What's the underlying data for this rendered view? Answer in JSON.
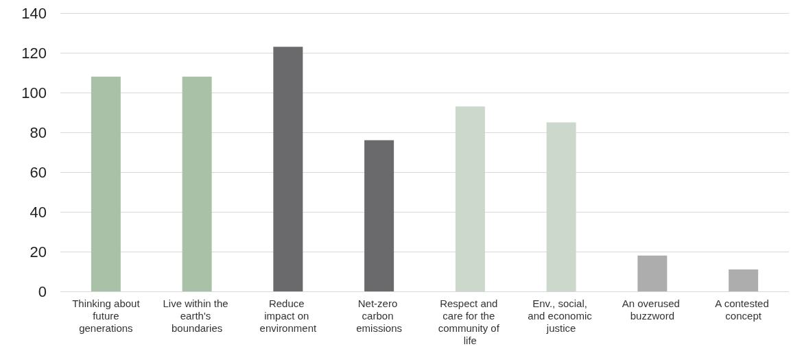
{
  "chart_data": {
    "type": "bar",
    "categories": [
      "Thinking about future generations",
      "Live within the earth's boundaries",
      "Reduce impact on environment",
      "Net-zero carbon emissions",
      "Respect and care for the community of life",
      "Env., social, and economic justice",
      "An overused buzzword",
      "A contested concept"
    ],
    "values": [
      108,
      108,
      123,
      76,
      93,
      85,
      18,
      11
    ],
    "colors": [
      "#a9c2a7",
      "#a9c2a7",
      "#6a6a6c",
      "#6a6a6c",
      "#ccd8cc",
      "#ccd8cc",
      "#adadad",
      "#adadad"
    ],
    "ylim": [
      0,
      140
    ],
    "yticks": [
      0,
      20,
      40,
      60,
      80,
      100,
      120,
      140
    ],
    "grid": "y"
  }
}
